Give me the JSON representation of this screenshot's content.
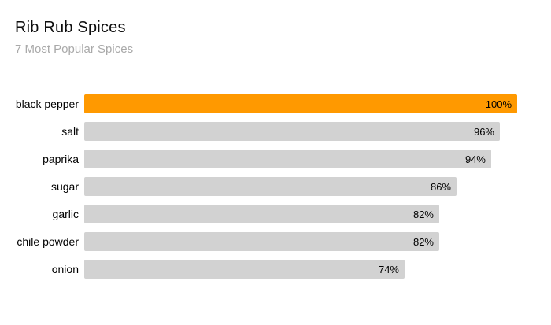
{
  "header": {
    "title": "Rib Rub Spices",
    "subtitle": "7 Most Popular Spices"
  },
  "colors": {
    "highlight_bar": "#ff9900",
    "default_bar": "#d2d2d2",
    "title_text": "#0d0d0d",
    "subtitle_text": "#a9a9a9",
    "value_text": "#000000"
  },
  "chart_data": {
    "type": "bar",
    "orientation": "horizontal",
    "title": "Rib Rub Spices",
    "subtitle": "7 Most Popular Spices",
    "categories": [
      "black pepper",
      "salt",
      "paprika",
      "sugar",
      "garlic",
      "chile powder",
      "onion"
    ],
    "values": [
      100,
      96,
      94,
      86,
      82,
      82,
      74
    ],
    "value_labels": [
      "100%",
      "96%",
      "94%",
      "86%",
      "82%",
      "82%",
      "74%"
    ],
    "xlim": [
      0,
      100
    ],
    "highlight_index": 0,
    "grid": false,
    "legend": false,
    "axes_shown": false
  }
}
